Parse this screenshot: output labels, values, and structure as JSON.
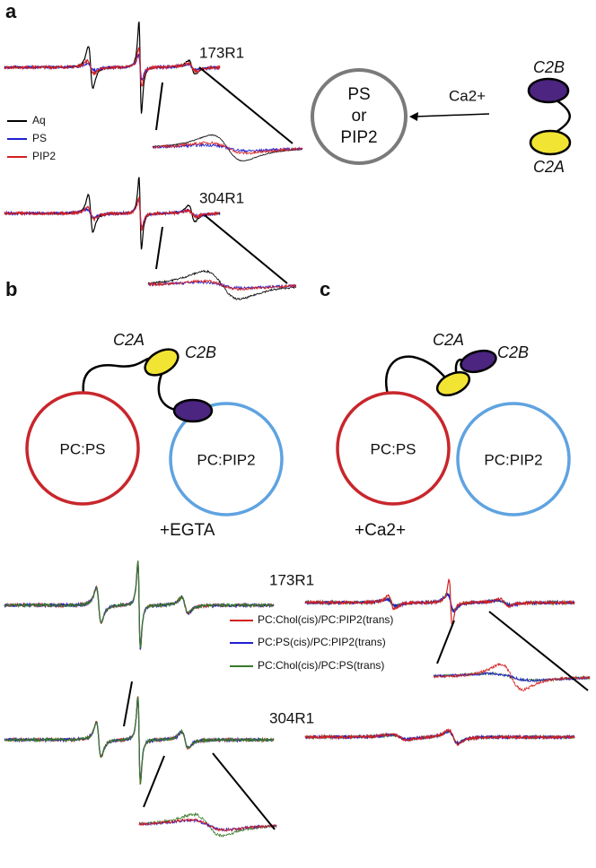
{
  "panel_a": {
    "label": "a",
    "spectra_labels": [
      "173R1",
      "304R1"
    ],
    "legend": [
      "Aq",
      "PS",
      "PIP2"
    ],
    "membrane": [
      "PS",
      "or",
      "PIP2"
    ],
    "ion": "Ca2+",
    "domains": [
      "C2B",
      "C2A"
    ]
  },
  "panel_b": {
    "label": "b",
    "domains": [
      "C2A",
      "C2B"
    ],
    "vesicles": [
      "PC:PS",
      "PC:PIP2"
    ]
  },
  "panel_c": {
    "label": "c",
    "domains": [
      "C2A",
      "C2B"
    ],
    "vesicles": [
      "PC:PS",
      "PC:PIP2"
    ]
  },
  "conditions": [
    "+EGTA",
    "+Ca2+"
  ],
  "bottom": {
    "spectra_labels": [
      "173R1",
      "304R1"
    ],
    "legend": [
      "PC:Chol(cis)/PC:PIP2(trans)",
      "PC:PS(cis)/PC:PIP2(trans)",
      "PC:Chol(cis)/PC:PS(trans)"
    ]
  }
}
